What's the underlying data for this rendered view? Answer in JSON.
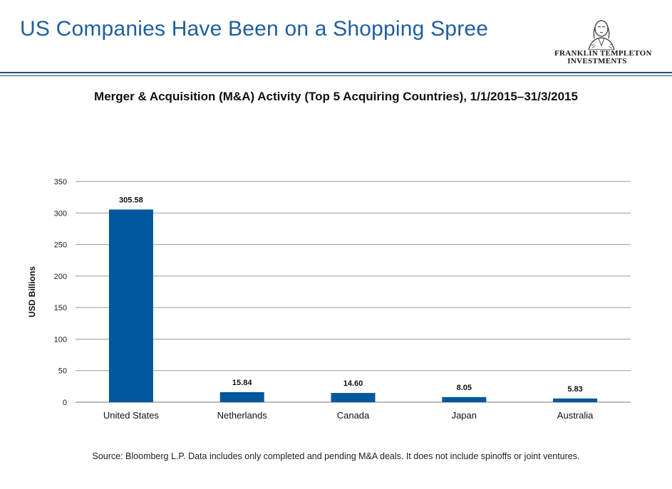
{
  "header": {
    "title": "US Companies Have Been on a Shopping Spree",
    "logo_line1": "FRANKLIN TEMPLETON",
    "logo_line2": "INVESTMENTS"
  },
  "chart_data": {
    "type": "bar",
    "title": "Merger & Acquisition (M&A) Activity (Top 5 Acquiring Countries), 1/1/2015–31/3/2015",
    "xlabel": "",
    "ylabel": "USD Billions",
    "categories": [
      "United States",
      "Netherlands",
      "Canada",
      "Japan",
      "Australia"
    ],
    "values": [
      305.58,
      15.84,
      14.6,
      8.05,
      5.83
    ],
    "data_labels": [
      "305.58",
      "15.84",
      "14.60",
      "8.05",
      "5.83"
    ],
    "ylim": [
      0,
      350
    ],
    "yticks": [
      0,
      50,
      100,
      150,
      200,
      250,
      300,
      350
    ],
    "grid": true,
    "legend": "none",
    "bar_color": "#00579c"
  },
  "footnote": "Source: Bloomberg L.P. Data includes only completed and pending M&A deals. It does not include spinoffs or joint ventures."
}
